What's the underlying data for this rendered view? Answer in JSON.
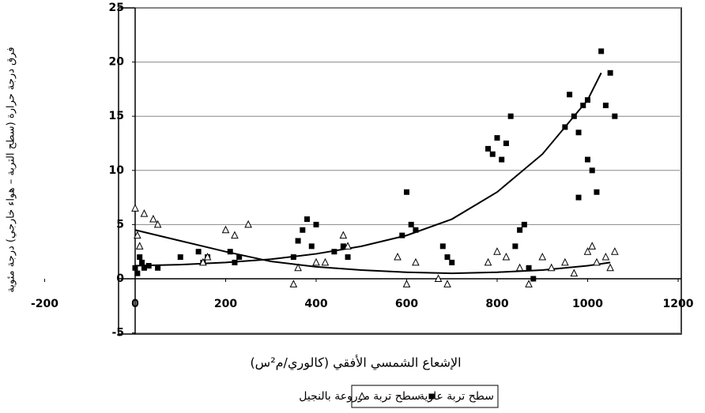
{
  "chart_data": {
    "type": "scatter",
    "ylabel": "فرق درجة حرارة (سطح التربة – هواء خارجي) درجة مئوية",
    "xlabel": "الإشعاع الشمسي الأفقي (كالوري/م²س)",
    "xlim": [
      -200,
      1200
    ],
    "xticks": [
      -200,
      0,
      200,
      400,
      600,
      800,
      1000,
      1200
    ],
    "ylim": [
      -5,
      25
    ],
    "yticks": [
      -5,
      0,
      5,
      10,
      15,
      20,
      25
    ],
    "grid": true,
    "series": [
      {
        "name": "سطح تربة عارية",
        "marker": "square",
        "color": "#000000",
        "x": [
          0,
          5,
          10,
          15,
          20,
          30,
          50,
          100,
          140,
          150,
          160,
          210,
          220,
          230,
          350,
          360,
          370,
          380,
          390,
          400,
          440,
          460,
          470,
          590,
          600,
          610,
          620,
          680,
          690,
          700,
          780,
          790,
          800,
          810,
          820,
          830,
          840,
          850,
          860,
          870,
          880,
          950,
          960,
          970,
          980,
          990,
          1000,
          1010,
          1020,
          1030,
          1040,
          1050,
          1060,
          980,
          1000
        ],
        "values": [
          1,
          0.5,
          2,
          1.5,
          1,
          1.2,
          1,
          2,
          2.5,
          1.5,
          2,
          2.5,
          1.5,
          2,
          2,
          3.5,
          4.5,
          5.5,
          3,
          5,
          2.5,
          3,
          2,
          4,
          8,
          5,
          4.5,
          3,
          2,
          1.5,
          12,
          11.5,
          13,
          11,
          12.5,
          15,
          3,
          4.5,
          5,
          1,
          0,
          14,
          17,
          15,
          13.5,
          16,
          11,
          10,
          8,
          21,
          16,
          19,
          15,
          7.5,
          16.5
        ]
      },
      {
        "name": "سطح تربة مزروعة بالنجيل",
        "marker": "triangle",
        "color": "#000000",
        "x": [
          0,
          5,
          10,
          20,
          40,
          50,
          150,
          160,
          200,
          220,
          250,
          350,
          360,
          400,
          420,
          460,
          470,
          580,
          600,
          620,
          670,
          690,
          780,
          800,
          820,
          850,
          870,
          900,
          920,
          950,
          970,
          1000,
          1010,
          1020,
          1040,
          1050,
          1060
        ],
        "values": [
          6.5,
          4,
          3,
          6,
          5.5,
          5,
          1.5,
          2,
          4.5,
          4,
          5,
          -0.5,
          1,
          1.5,
          1.5,
          4,
          3,
          2,
          -0.5,
          1.5,
          0,
          -0.5,
          1.5,
          2.5,
          2,
          1,
          -0.5,
          2,
          1,
          1.5,
          0.5,
          2.5,
          3,
          1.5,
          2,
          1,
          2.5
        ]
      }
    ],
    "trendlines": [
      {
        "color": "#000000",
        "x": [
          0,
          100,
          200,
          300,
          400,
          500,
          600,
          700,
          800,
          900,
          1000,
          1030
        ],
        "values": [
          1.2,
          1.3,
          1.5,
          1.8,
          2.3,
          3,
          4,
          5.5,
          8,
          11.5,
          16.5,
          19
        ]
      },
      {
        "color": "#000000",
        "x": [
          0,
          100,
          200,
          300,
          400,
          500,
          600,
          700,
          800,
          900,
          1000,
          1050
        ],
        "values": [
          4.5,
          3.5,
          2.5,
          1.6,
          1.1,
          0.8,
          0.6,
          0.5,
          0.6,
          0.8,
          1.2,
          1.5
        ]
      }
    ]
  }
}
